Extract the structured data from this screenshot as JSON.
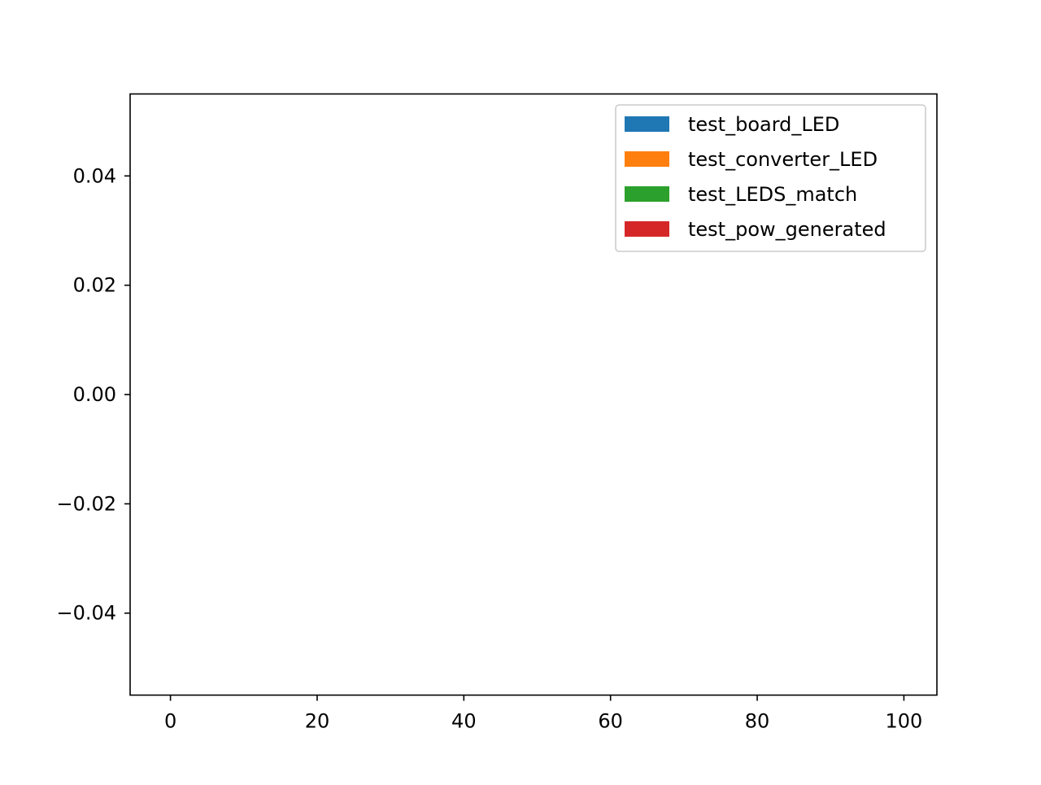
{
  "chart_data": {
    "type": "bar",
    "title": "",
    "xlabel": "",
    "ylabel": "",
    "xlim": [
      -5.5,
      104.5
    ],
    "ylim": [
      -0.055,
      0.055
    ],
    "x_ticks": [
      0,
      20,
      40,
      60,
      80,
      100
    ],
    "x_tick_labels": [
      "0",
      "20",
      "40",
      "60",
      "80",
      "100"
    ],
    "y_ticks": [
      -0.04,
      -0.02,
      0.0,
      0.02,
      0.04
    ],
    "y_tick_labels": [
      "−0.04",
      "−0.02",
      "0.00",
      "0.02",
      "0.04"
    ],
    "grid": false,
    "legend_position": "top-right",
    "series": [
      {
        "name": "test_board_LED",
        "color": "#1f77b4",
        "x": [],
        "values": []
      },
      {
        "name": "test_converter_LED",
        "color": "#ff7f0e",
        "x": [],
        "values": []
      },
      {
        "name": "test_LEDS_match",
        "color": "#2ca02c",
        "x": [],
        "values": []
      },
      {
        "name": "test_pow_generated",
        "color": "#d62728",
        "x": [],
        "values": []
      }
    ]
  }
}
